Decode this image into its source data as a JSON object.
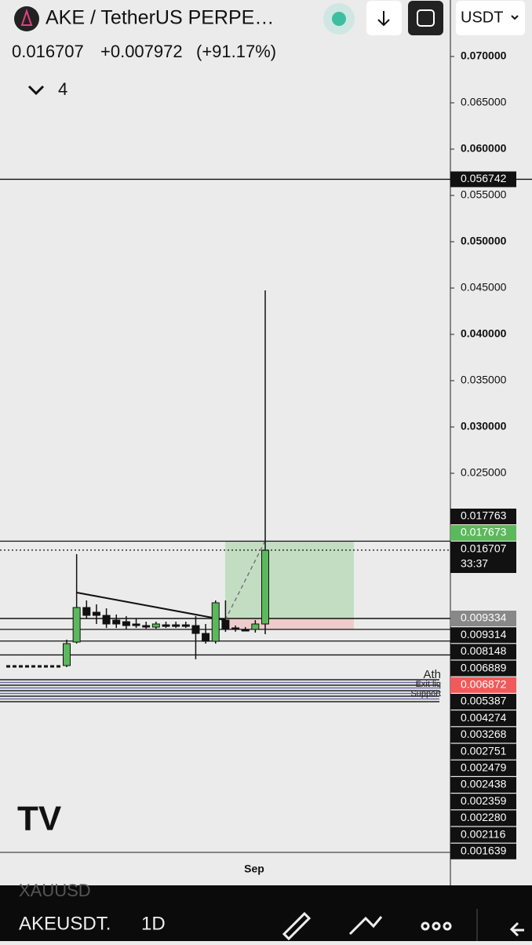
{
  "header": {
    "title": "AKE / TetherUS PERPE…",
    "currency": "USDT",
    "price": "0.016707",
    "change": "+0.007972",
    "change_pct": "(+91.17%)",
    "indicators": "4"
  },
  "chart_data": {
    "type": "candlestick",
    "x_label": "Sep",
    "ylim": [
      -0.01593,
      0.0761
    ],
    "yticks": [
      {
        "value": 0.07,
        "label": "0.070000"
      },
      {
        "value": 0.065,
        "label": "0.065000"
      },
      {
        "value": 0.06,
        "label": "0.060000"
      },
      {
        "value": 0.055,
        "label": "0.055000"
      },
      {
        "value": 0.05,
        "label": "0.050000"
      },
      {
        "value": 0.045,
        "label": "0.045000"
      },
      {
        "value": 0.04,
        "label": "0.040000"
      },
      {
        "value": 0.035,
        "label": "0.035000"
      },
      {
        "value": 0.03,
        "label": "0.030000"
      },
      {
        "value": 0.025,
        "label": "0.025000"
      }
    ],
    "ohlc": [
      [
        0.00424,
        0.00703,
        0.00407,
        0.00661
      ],
      [
        0.00678,
        0.01627,
        0.00661,
        0.01051
      ],
      [
        0.01051,
        0.01127,
        0.00932,
        0.00966
      ],
      [
        0.01,
        0.01085,
        0.00873,
        0.00966
      ],
      [
        0.00966,
        0.01042,
        0.0083,
        0.00873
      ],
      [
        0.00915,
        0.00975,
        0.0083,
        0.00873
      ],
      [
        0.00898,
        0.00957,
        0.00813,
        0.00856
      ],
      [
        0.00873,
        0.00932,
        0.0083,
        0.00856
      ],
      [
        0.00856,
        0.00898,
        0.00822,
        0.00839
      ],
      [
        0.00839,
        0.00898,
        0.00822,
        0.00873
      ],
      [
        0.00864,
        0.00898,
        0.0083,
        0.00856
      ],
      [
        0.00864,
        0.00898,
        0.0083,
        0.00856
      ],
      [
        0.00864,
        0.00898,
        0.0083,
        0.00856
      ],
      [
        0.00856,
        0.00958,
        0.00492,
        0.00771
      ],
      [
        0.00771,
        0.00873,
        0.00661,
        0.00686
      ],
      [
        0.00686,
        0.01127,
        0.00661,
        0.01102
      ],
      [
        0.00915,
        0.01127,
        0.00788,
        0.00814
      ],
      [
        0.00831,
        0.00857,
        0.0079,
        0.00814
      ],
      [
        0.00814,
        0.0084,
        0.00797,
        0.00797
      ],
      [
        0.00814,
        0.00915,
        0.0078,
        0.00873
      ],
      [
        0.00873,
        0.04475,
        0.00763,
        0.01669
      ]
    ],
    "up_color": "#5cb85c",
    "down_color": "#111111",
    "levels_top": [
      {
        "value": 0.056742,
        "label": "0.056742",
        "bg": "#111111"
      }
    ],
    "levels_mid": [
      {
        "value": 0.017763,
        "label": "0.017763",
        "bg": "#111111"
      },
      {
        "value": 0.017673,
        "label": "0.017673",
        "bg": "#5cb85c"
      },
      {
        "value": 0.016707,
        "label": "0.016707",
        "bg": "#111111"
      }
    ],
    "countdown": "33:37",
    "levels_low": [
      {
        "value": 0.009334,
        "label": "0.009334",
        "bg": "#888888"
      },
      {
        "value": 0.009314,
        "label": "0.009314",
        "bg": "#111111"
      },
      {
        "value": 0.008148,
        "label": "0.008148",
        "bg": "#111111"
      },
      {
        "value": 0.006889,
        "label": "0.006889",
        "bg": "#111111"
      },
      {
        "value": 0.006872,
        "label": "0.006872",
        "bg": "#f05a5a"
      },
      {
        "value": 0.005387,
        "label": "0.005387",
        "bg": "#111111"
      },
      {
        "value": 0.004274,
        "label": "0.004274",
        "bg": "#111111"
      },
      {
        "value": 0.003268,
        "label": "0.003268",
        "bg": "#111111"
      },
      {
        "value": 0.002751,
        "label": "0.002751",
        "bg": "#111111"
      },
      {
        "value": 0.002479,
        "label": "0.002479",
        "bg": "#111111"
      },
      {
        "value": 0.002438,
        "label": "0.002438",
        "bg": "#111111"
      },
      {
        "value": 0.002359,
        "label": "0.002359",
        "bg": "#111111"
      },
      {
        "value": 0.00228,
        "label": "0.002280",
        "bg": "#111111"
      },
      {
        "value": 0.002116,
        "label": "0.002116",
        "bg": "#111111"
      },
      {
        "value": 0.001639,
        "label": "0.001639",
        "bg": "#111111"
      }
    ],
    "annotations": [
      "Ath",
      "Exit liq",
      "Support"
    ]
  },
  "footer": {
    "ghost": "XAUUSD",
    "symbol": "AKEUSDT.",
    "interval": "1D"
  }
}
